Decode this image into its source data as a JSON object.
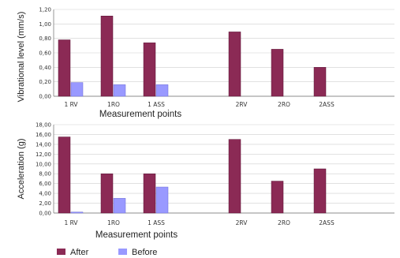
{
  "colors": {
    "after": "#8b2a55",
    "before": "#9999ff",
    "grid": "#cfcfcf",
    "axis": "#8c8c8c"
  },
  "legend": {
    "placement": "bottom-left",
    "after": "After",
    "before": "Before"
  },
  "chart_data": [
    {
      "type": "bar",
      "ylabel": "Vibrational level (mm/s)",
      "xlabel": "Measurement  points",
      "ylim": [
        0,
        1.2
      ],
      "yticks": [
        "0,00",
        "0,20",
        "0,40",
        "0,60",
        "0,80",
        "1,00",
        "1,20"
      ],
      "grid": true,
      "categories": [
        "1 RV",
        "1RO",
        "1 ASS",
        "",
        "2RV",
        "2RO",
        "2ASS",
        ""
      ],
      "series": [
        {
          "name": "After",
          "values": [
            0.78,
            1.11,
            0.74,
            null,
            0.89,
            0.65,
            0.4,
            null
          ]
        },
        {
          "name": "Before",
          "values": [
            0.19,
            0.16,
            0.16,
            null,
            null,
            null,
            null,
            null
          ]
        }
      ]
    },
    {
      "type": "bar",
      "ylabel": "Acceleration (g)",
      "xlabel": "Measurement  points",
      "ylim": [
        0,
        18
      ],
      "yticks": [
        "0,00",
        "2,00",
        "4,00",
        "6,00",
        "8,00",
        "10,00",
        "12,00",
        "14,00",
        "16,00",
        "18,00"
      ],
      "grid": true,
      "categories": [
        "1 RV",
        "1RO",
        "1 ASS",
        "",
        "2RV",
        "2RO",
        "2ASS",
        ""
      ],
      "series": [
        {
          "name": "After",
          "values": [
            15.5,
            8.0,
            8.0,
            null,
            15.0,
            6.5,
            9.0,
            null
          ]
        },
        {
          "name": "Before",
          "values": [
            0.2,
            3.0,
            5.3,
            null,
            null,
            null,
            null,
            null
          ]
        }
      ]
    }
  ]
}
